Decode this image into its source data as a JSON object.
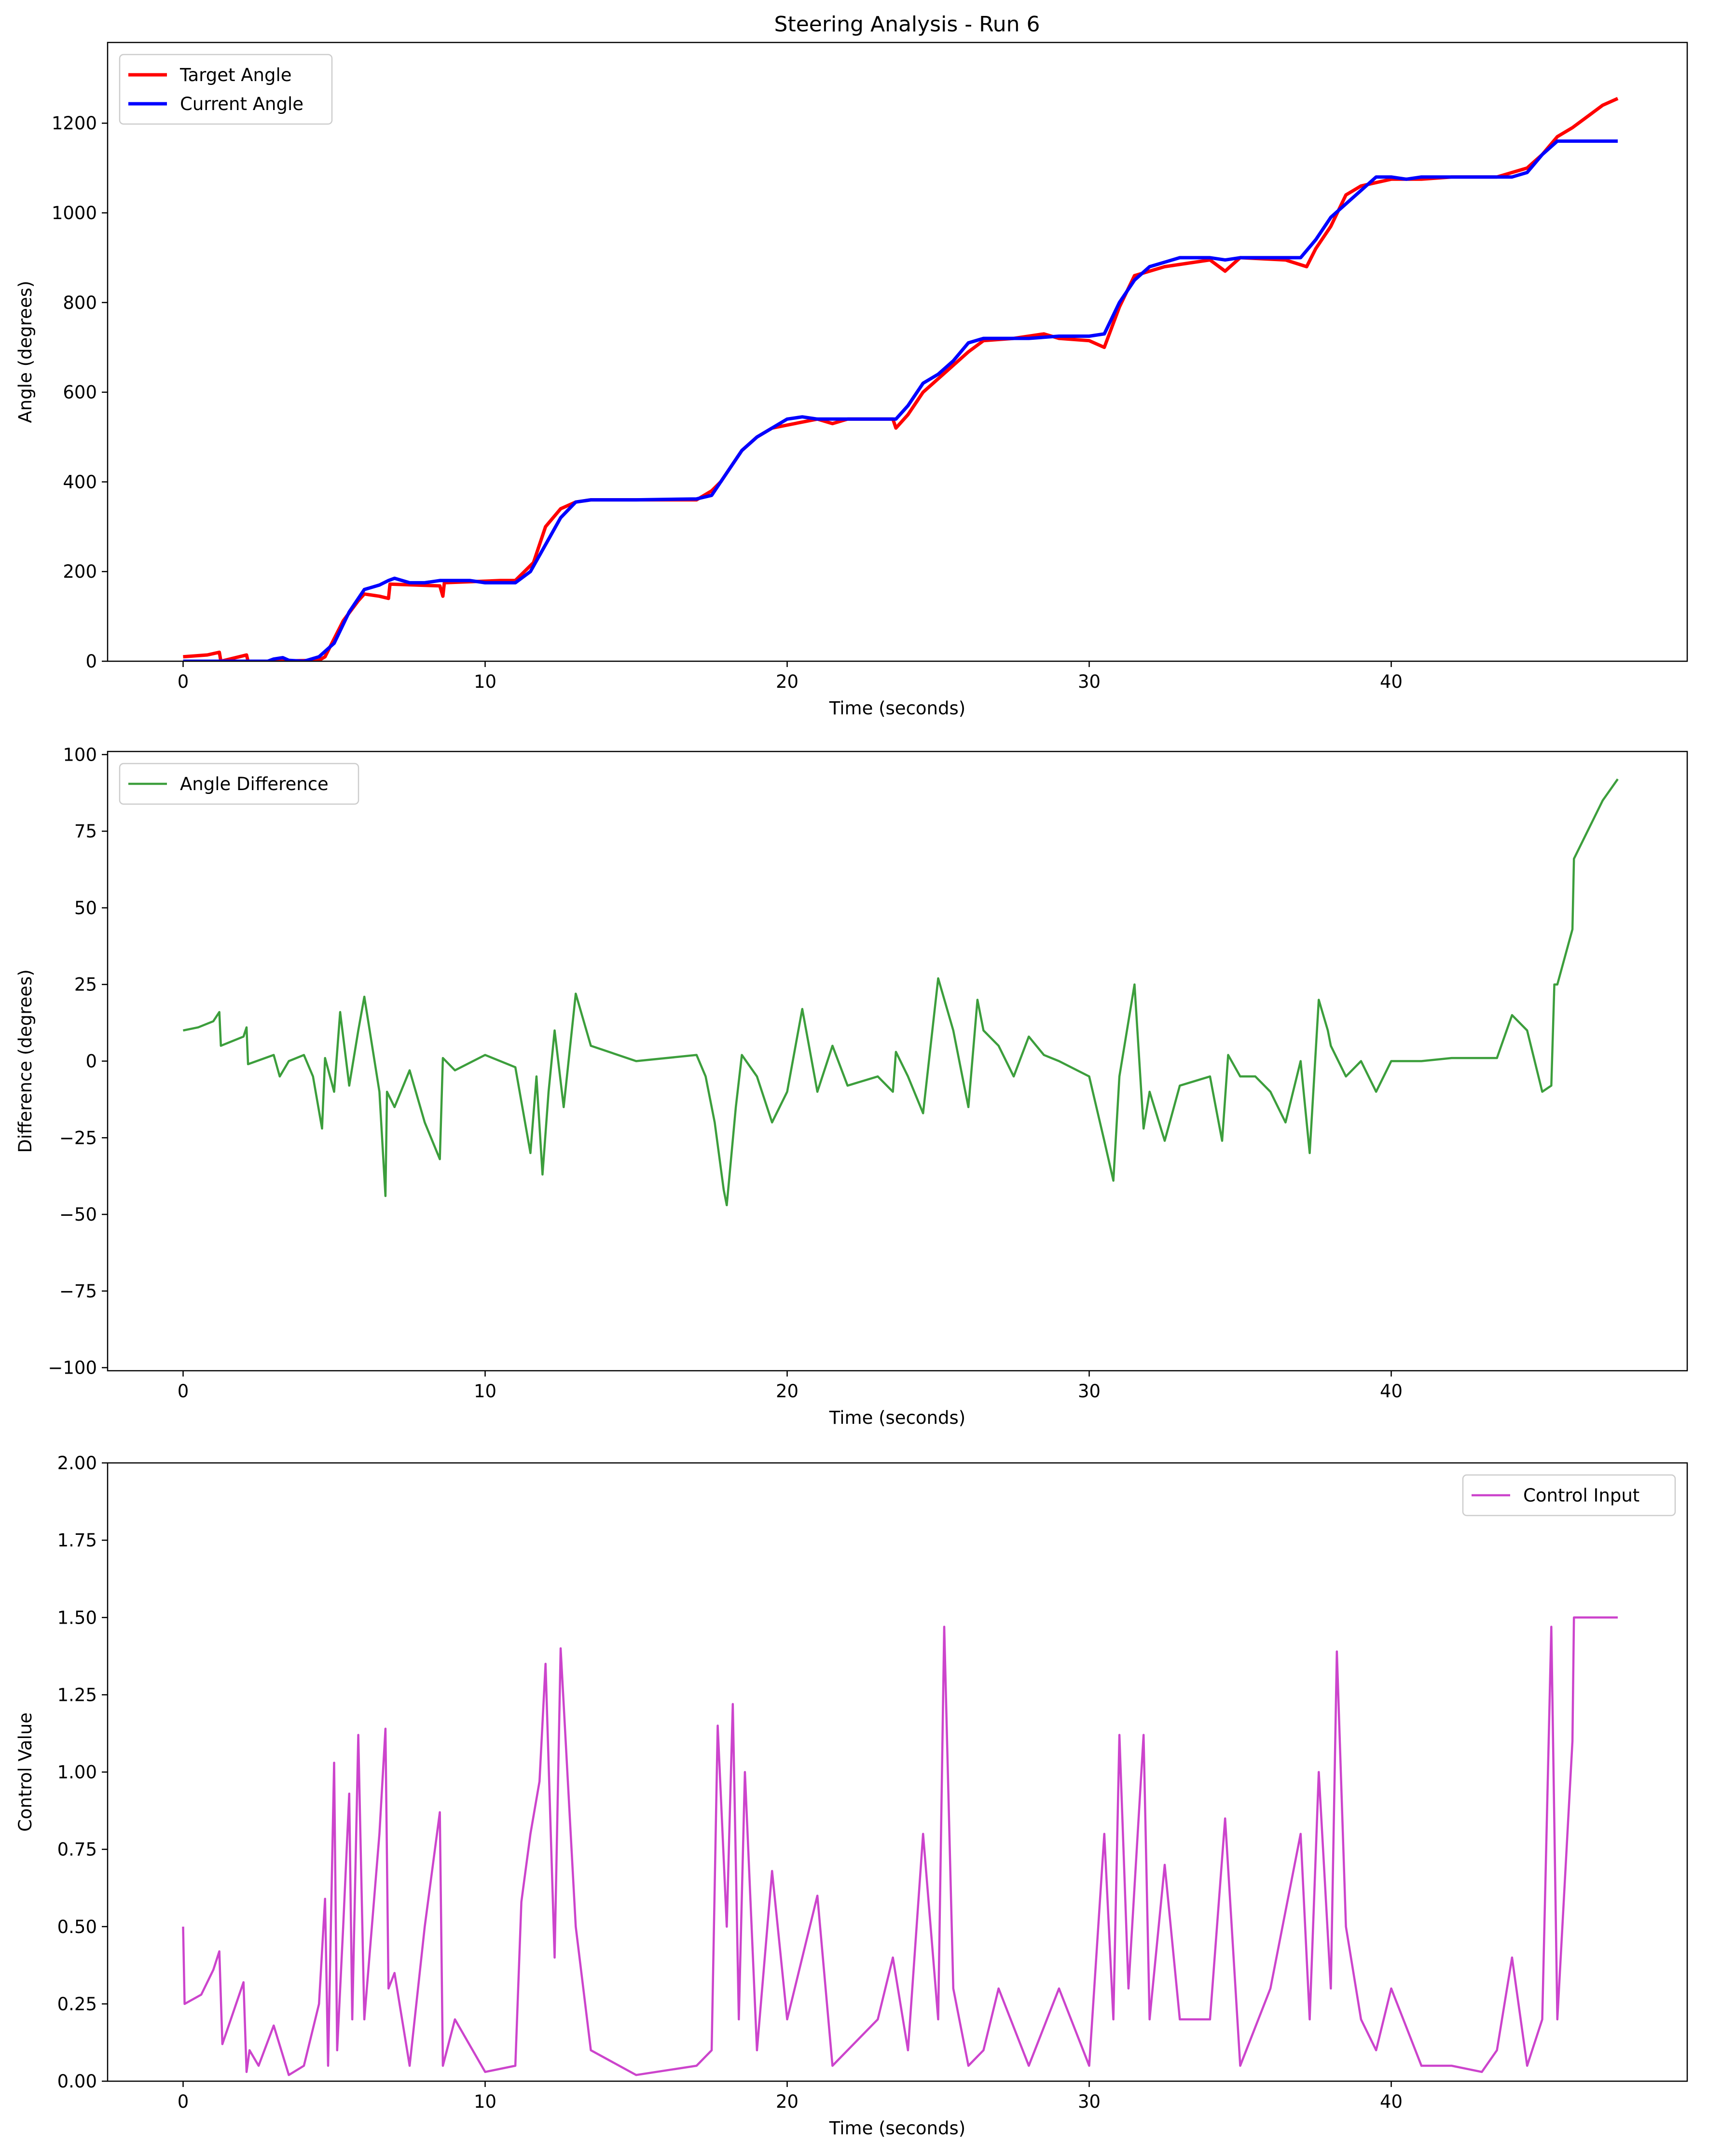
{
  "chart_data": [
    {
      "type": "line",
      "title": "Steering Analysis - Run 6",
      "xlabel": "Time (seconds)",
      "ylabel": "Angle (degrees)",
      "xlim": [
        -2.5,
        49.8
      ],
      "ylim": [
        0,
        1380
      ],
      "xticks": [
        0,
        10,
        20,
        30,
        40
      ],
      "yticks": [
        0,
        200,
        400,
        600,
        800,
        1000,
        1200
      ],
      "xtick_labels": [
        "0",
        "10",
        "20",
        "30",
        "40"
      ],
      "ytick_labels": [
        "0",
        "200",
        "400",
        "600",
        "800",
        "1000",
        "1200"
      ],
      "legend_position": "upper-left",
      "series": [
        {
          "name": "Target Angle",
          "color": "#ff0000",
          "x": [
            0,
            0.8,
            1.2,
            1.25,
            2.1,
            2.15,
            2.8,
            4.5,
            4.7,
            5.3,
            5.8,
            6.0,
            6.5,
            6.8,
            6.85,
            8.5,
            8.6,
            8.65,
            10.5,
            11.0,
            11.6,
            12.0,
            12.5,
            13.0,
            13.5,
            15.0,
            17.0,
            17.5,
            17.8,
            18.0,
            18.5,
            19.0,
            19.5,
            21.0,
            21.5,
            22.0,
            23.5,
            23.6,
            24.0,
            24.5,
            25.0,
            25.5,
            26.0,
            26.5,
            27.5,
            28.5,
            29.0,
            30.0,
            30.5,
            31.0,
            31.5,
            32.5,
            34.0,
            34.5,
            35.0,
            36.5,
            37.2,
            37.5,
            38.0,
            38.5,
            39.0,
            40.0,
            41.0,
            42.0,
            43.5,
            44.5,
            45.0,
            45.5,
            46.0,
            47.0,
            47.5
          ],
          "y": [
            10,
            14,
            20,
            0,
            14,
            0,
            0,
            2,
            10,
            90,
            135,
            150,
            145,
            140,
            172,
            168,
            145,
            175,
            180,
            180,
            220,
            300,
            340,
            355,
            360,
            360,
            360,
            380,
            400,
            420,
            470,
            500,
            520,
            540,
            530,
            540,
            540,
            520,
            550,
            600,
            630,
            660,
            690,
            715,
            720,
            730,
            720,
            715,
            700,
            790,
            860,
            880,
            895,
            870,
            900,
            895,
            880,
            920,
            970,
            1040,
            1060,
            1075,
            1075,
            1080,
            1080,
            1100,
            1130,
            1170,
            1190,
            1240,
            1255
          ]
        },
        {
          "name": "Current Angle",
          "color": "#0000ff",
          "x": [
            0,
            1.0,
            2.0,
            2.8,
            3.0,
            3.3,
            3.5,
            4.0,
            4.5,
            5.0,
            5.5,
            6.0,
            6.5,
            6.8,
            7.0,
            7.5,
            8.0,
            8.5,
            9.0,
            9.5,
            10.0,
            10.5,
            11.0,
            11.5,
            12.0,
            12.5,
            13.0,
            13.5,
            15.0,
            17.0,
            17.5,
            18.0,
            18.5,
            19.0,
            19.5,
            20.0,
            20.5,
            21.0,
            21.5,
            22.0,
            23.0,
            23.6,
            24.0,
            24.5,
            25.0,
            25.5,
            26.0,
            26.5,
            27.0,
            28.0,
            29.0,
            30.0,
            30.5,
            31.0,
            31.5,
            32.0,
            32.5,
            33.0,
            34.0,
            34.5,
            35.0,
            36.0,
            36.5,
            37.0,
            37.5,
            38.0,
            38.5,
            39.0,
            39.5,
            40.0,
            40.5,
            41.0,
            42.0,
            43.0,
            44.0,
            44.5,
            45.0,
            45.5,
            46.0,
            47.0,
            47.5
          ],
          "y": [
            0,
            0,
            0,
            0,
            5,
            8,
            2,
            0,
            10,
            40,
            110,
            160,
            170,
            180,
            185,
            175,
            175,
            180,
            180,
            180,
            175,
            175,
            175,
            200,
            260,
            320,
            355,
            360,
            360,
            362,
            370,
            420,
            470,
            500,
            520,
            540,
            545,
            540,
            540,
            540,
            540,
            540,
            570,
            620,
            640,
            670,
            710,
            720,
            720,
            720,
            725,
            725,
            730,
            800,
            850,
            880,
            890,
            900,
            900,
            895,
            900,
            900,
            900,
            900,
            940,
            990,
            1020,
            1050,
            1080,
            1080,
            1075,
            1080,
            1080,
            1080,
            1080,
            1090,
            1130,
            1160,
            1160,
            1160,
            1160
          ]
        }
      ]
    },
    {
      "type": "line",
      "title": "",
      "xlabel": "Time (seconds)",
      "ylabel": "Difference (degrees)",
      "xlim": [
        -2.5,
        49.8
      ],
      "ylim": [
        -101,
        101
      ],
      "xticks": [
        0,
        10,
        20,
        30,
        40
      ],
      "yticks": [
        100,
        75,
        50,
        25,
        0,
        -25,
        -50,
        -75,
        -100
      ],
      "xtick_labels": [
        "0",
        "10",
        "20",
        "30",
        "40"
      ],
      "ytick_labels": [
        "100",
        "75",
        "50",
        "25",
        "0",
        "−25",
        "−50",
        "−75",
        "−100"
      ],
      "legend_position": "upper-left",
      "series": [
        {
          "name": "Angle Difference",
          "color": "#3c9e3c",
          "x": [
            0,
            0.5,
            1.0,
            1.2,
            1.25,
            2.0,
            2.1,
            2.15,
            3.0,
            3.2,
            3.5,
            4.0,
            4.3,
            4.6,
            4.7,
            5.0,
            5.2,
            5.5,
            5.8,
            6.0,
            6.5,
            6.7,
            6.75,
            7.0,
            7.5,
            8.0,
            8.5,
            8.6,
            9.0,
            10.0,
            11.0,
            11.5,
            11.7,
            11.9,
            12.1,
            12.3,
            12.6,
            13.0,
            13.5,
            15.0,
            17.0,
            17.3,
            17.6,
            17.9,
            18.0,
            18.3,
            18.5,
            19.0,
            19.5,
            20.0,
            20.5,
            21.0,
            21.5,
            22.0,
            23.0,
            23.5,
            23.6,
            24.0,
            24.5,
            25.0,
            25.5,
            26.0,
            26.3,
            26.5,
            27.0,
            27.5,
            28.0,
            28.5,
            29.0,
            30.0,
            30.5,
            30.8,
            31.0,
            31.5,
            31.8,
            32.0,
            32.5,
            33.0,
            34.0,
            34.4,
            34.6,
            35.0,
            35.5,
            36.0,
            36.5,
            37.0,
            37.3,
            37.6,
            37.9,
            38.0,
            38.5,
            39.0,
            39.5,
            40.0,
            41.0,
            42.0,
            43.5,
            44.0,
            44.5,
            45.0,
            45.3,
            45.4,
            45.5,
            46.0,
            46.05,
            47.0,
            47.5
          ],
          "y": [
            10,
            11,
            13,
            16,
            5,
            8,
            11,
            -1,
            2,
            -5,
            0,
            2,
            -5,
            -22,
            1,
            -10,
            16,
            -8,
            10,
            21,
            -10,
            -44,
            -10,
            -15,
            -3,
            -20,
            -32,
            1,
            -3,
            2,
            -2,
            -30,
            -5,
            -37,
            -10,
            10,
            -15,
            22,
            5,
            0,
            2,
            -5,
            -20,
            -42,
            -47,
            -15,
            2,
            -5,
            -20,
            -10,
            17,
            -10,
            5,
            -8,
            -5,
            -10,
            3,
            -5,
            -17,
            27,
            10,
            -15,
            20,
            10,
            5,
            -5,
            8,
            2,
            0,
            -5,
            -26,
            -39,
            -5,
            25,
            -22,
            -10,
            -26,
            -8,
            -5,
            -26,
            2,
            -5,
            -5,
            -10,
            -20,
            0,
            -30,
            20,
            10,
            5,
            -5,
            0,
            -10,
            0,
            0,
            1,
            1,
            15,
            10,
            -10,
            -8,
            25,
            25,
            43,
            66,
            85,
            92
          ]
        }
      ]
    },
    {
      "type": "line",
      "title": "",
      "xlabel": "Time (seconds)",
      "ylabel": "Control Value",
      "xlim": [
        -2.5,
        49.8
      ],
      "ylim": [
        0,
        2.0
      ],
      "xticks": [
        0,
        10,
        20,
        30,
        40
      ],
      "yticks": [
        0,
        0.25,
        0.5,
        0.75,
        1.0,
        1.25,
        1.5,
        1.75,
        2.0
      ],
      "xtick_labels": [
        "0",
        "10",
        "20",
        "30",
        "40"
      ],
      "ytick_labels": [
        "0.00",
        "0.25",
        "0.50",
        "0.75",
        "1.00",
        "1.25",
        "1.50",
        "1.75",
        "2.00"
      ],
      "legend_position": "upper-right",
      "series": [
        {
          "name": "Control Input",
          "color": "#cc44cc",
          "x": [
            0,
            0.05,
            0.6,
            1.0,
            1.2,
            1.3,
            2.0,
            2.1,
            2.2,
            2.5,
            3.0,
            3.5,
            4.0,
            4.5,
            4.7,
            4.8,
            5.0,
            5.1,
            5.3,
            5.5,
            5.6,
            5.8,
            6.0,
            6.5,
            6.7,
            6.8,
            7.0,
            7.5,
            8.0,
            8.5,
            8.6,
            9.0,
            10.0,
            11.0,
            11.2,
            11.5,
            11.8,
            12.0,
            12.3,
            12.5,
            13.0,
            13.5,
            15.0,
            17.0,
            17.5,
            17.7,
            18.0,
            18.2,
            18.4,
            18.6,
            19.0,
            19.5,
            20.0,
            20.5,
            21.0,
            21.5,
            22.0,
            23.0,
            23.5,
            24.0,
            24.5,
            25.0,
            25.2,
            25.5,
            26.0,
            26.5,
            27.0,
            28.0,
            29.0,
            30.0,
            30.5,
            30.8,
            31.0,
            31.3,
            31.8,
            32.0,
            32.5,
            33.0,
            34.0,
            34.5,
            35.0,
            36.0,
            37.0,
            37.3,
            37.6,
            38.0,
            38.2,
            38.5,
            39.0,
            39.5,
            40.0,
            41.0,
            42.0,
            43.0,
            43.5,
            44.0,
            44.5,
            45.0,
            45.3,
            45.5,
            46.0,
            46.05,
            47.0,
            47.5
          ],
          "y": [
            0.5,
            0.25,
            0.28,
            0.36,
            0.42,
            0.12,
            0.32,
            0.03,
            0.1,
            0.05,
            0.18,
            0.02,
            0.05,
            0.25,
            0.59,
            0.05,
            1.03,
            0.1,
            0.5,
            0.93,
            0.2,
            1.12,
            0.2,
            0.8,
            1.14,
            0.3,
            0.35,
            0.05,
            0.5,
            0.87,
            0.05,
            0.2,
            0.03,
            0.05,
            0.58,
            0.8,
            0.97,
            1.35,
            0.4,
            1.4,
            0.5,
            0.1,
            0.02,
            0.05,
            0.1,
            1.15,
            0.5,
            1.22,
            0.2,
            1.0,
            0.1,
            0.68,
            0.2,
            0.4,
            0.6,
            0.05,
            0.1,
            0.2,
            0.4,
            0.1,
            0.8,
            0.2,
            1.47,
            0.3,
            0.05,
            0.1,
            0.3,
            0.05,
            0.3,
            0.05,
            0.8,
            0.2,
            1.12,
            0.3,
            1.12,
            0.2,
            0.7,
            0.2,
            0.2,
            0.85,
            0.05,
            0.3,
            0.8,
            0.2,
            1.0,
            0.3,
            1.39,
            0.5,
            0.2,
            0.1,
            0.3,
            0.05,
            0.05,
            0.03,
            0.1,
            0.4,
            0.05,
            0.2,
            1.47,
            0.2,
            1.1,
            1.5,
            1.5,
            1.5
          ]
        }
      ]
    }
  ]
}
